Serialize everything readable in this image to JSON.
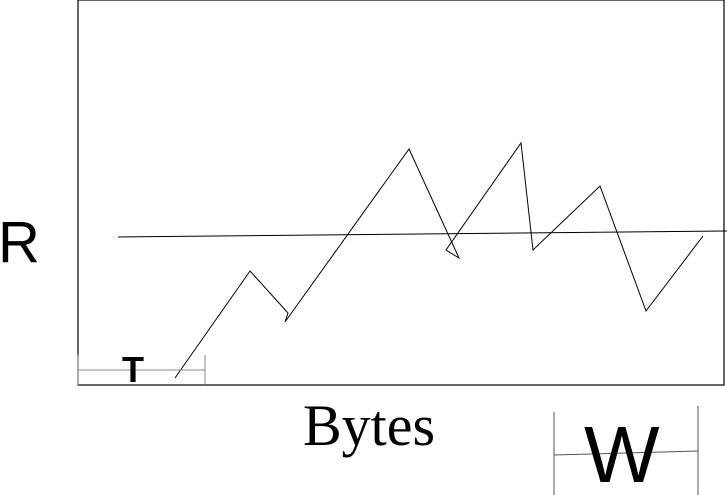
{
  "labels": {
    "y_axis": "R",
    "x_axis": "Bytes",
    "left_marker": "T",
    "right_marker": "W"
  },
  "colors": {
    "ink": "#000000",
    "background": "#ffffff"
  }
}
